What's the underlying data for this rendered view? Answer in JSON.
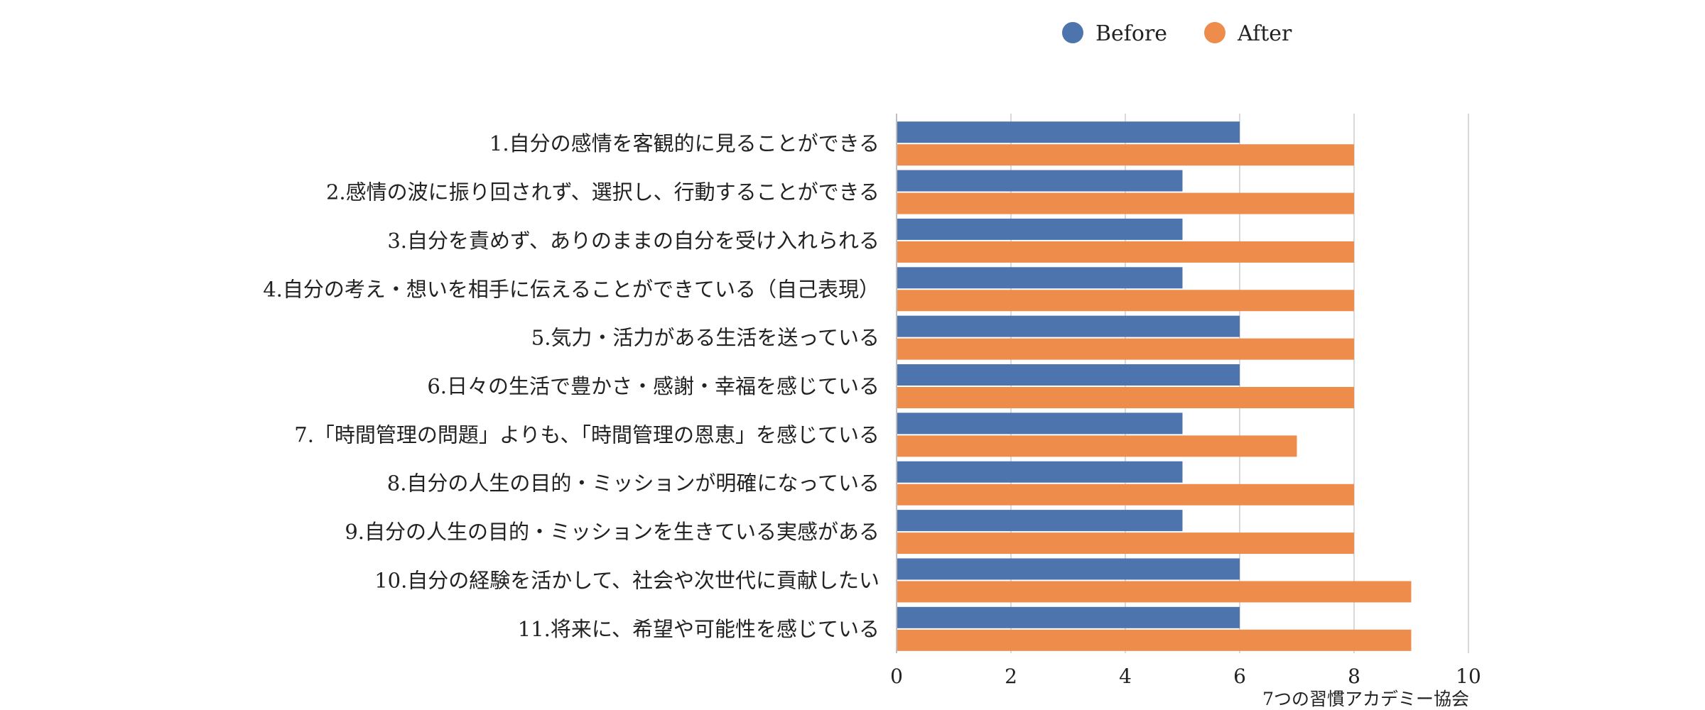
{
  "chart_data": {
    "type": "bar",
    "orientation": "horizontal",
    "categories": [
      "1.自分の感情を客観的に見ることができる",
      "2.感情の波に振り回されず、選択し、行動することができる",
      "3.自分を責めず、ありのままの自分を受け入れられる",
      "4.自分の考え・想いを相手に伝えることができている（自己表現）",
      "5.気力・活力がある生活を送っている",
      "6.日々の生活で豊かさ・感謝・幸福を感じている",
      "7.「時間管理の問題」よりも、「時間管理の恩恵」を感じている",
      "8.自分の人生の目的・ミッションが明確になっている",
      "9.自分の人生の目的・ミッションを生きている実感がある",
      "10.自分の経験を活かして、社会や次世代に貢献したい",
      "11.将来に、希望や可能性を感じている"
    ],
    "series": [
      {
        "name": "Before",
        "color": "#4e74ae",
        "values": [
          6,
          5,
          5,
          5,
          6,
          6,
          5,
          5,
          5,
          6,
          6
        ]
      },
      {
        "name": "After",
        "color": "#ee8d4b",
        "values": [
          8,
          8,
          8,
          8,
          8,
          8,
          7,
          8,
          8,
          9,
          9
        ]
      }
    ],
    "xlim": [
      0,
      10
    ],
    "xticks": [
      "0",
      "2",
      "4",
      "6",
      "8",
      "10"
    ],
    "grid": true,
    "legend_position": "top",
    "title": "",
    "xlabel": "",
    "ylabel": ""
  },
  "credit": "7つの習慣アカデミー協会"
}
